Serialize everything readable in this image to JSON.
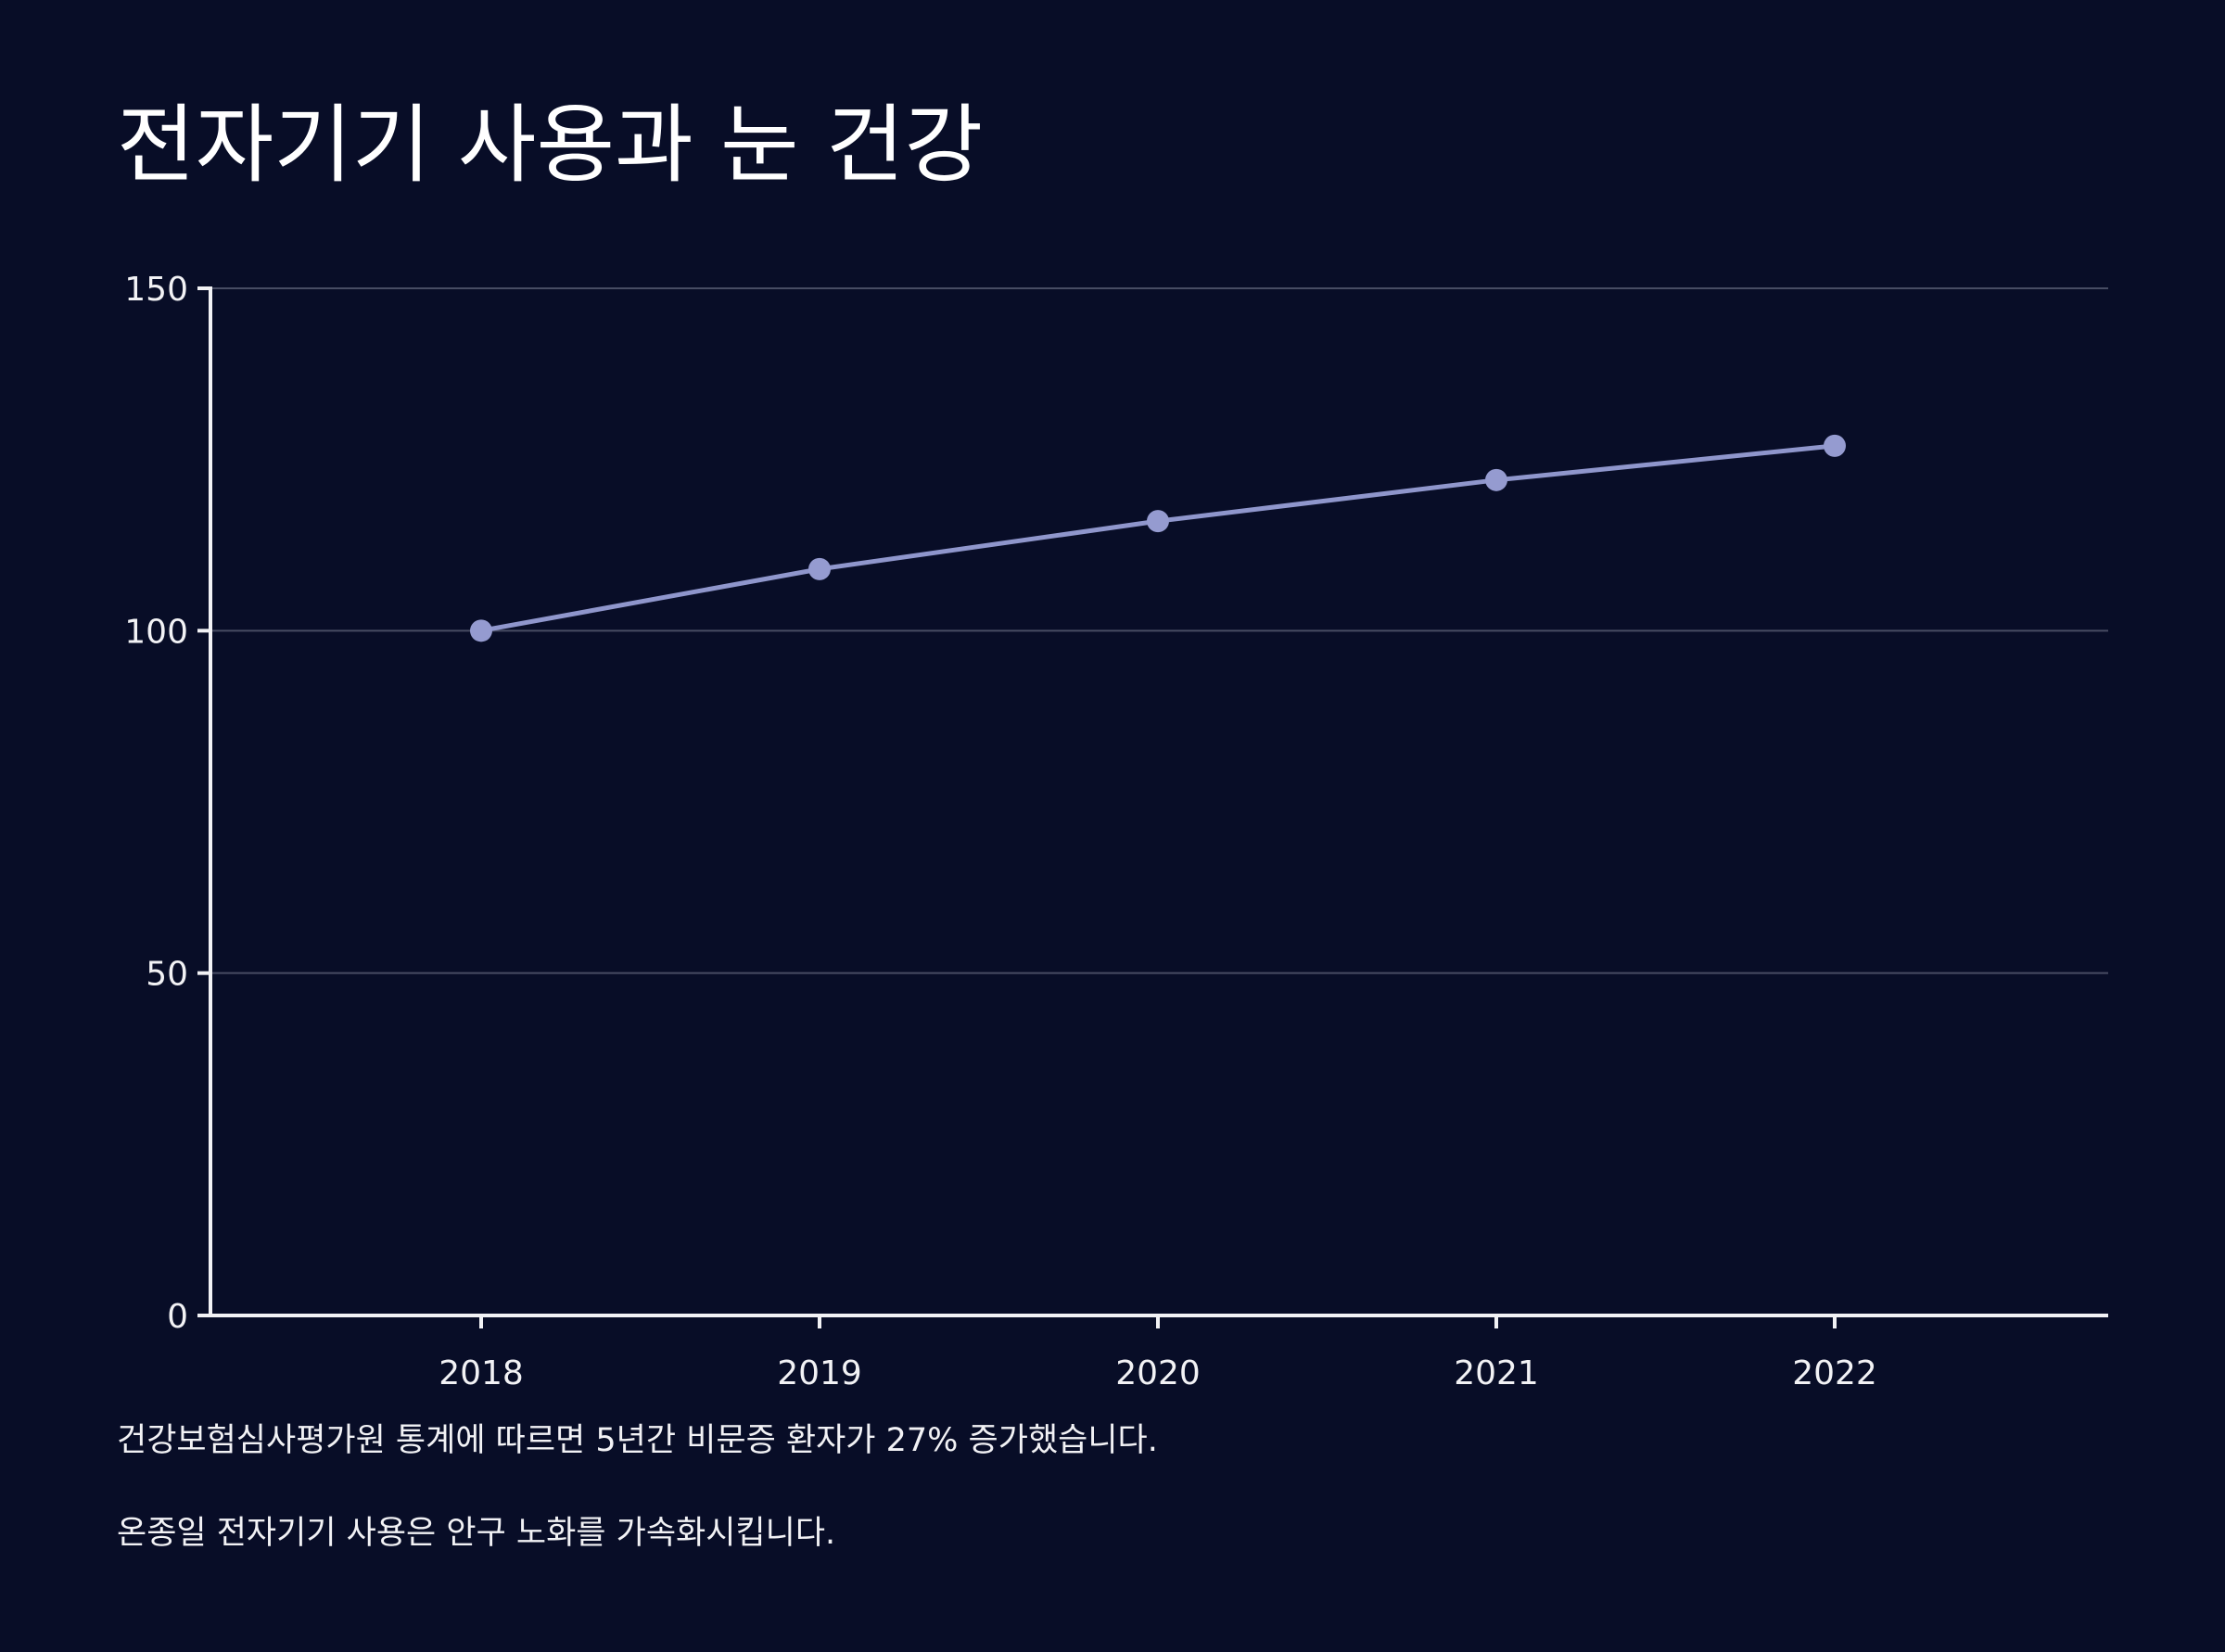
{
  "chart_data": {
    "type": "line",
    "title": "전자기기 사용과 눈 건강",
    "xlabel": "",
    "ylabel": "",
    "categories": [
      "2018",
      "2019",
      "2020",
      "2021",
      "2022"
    ],
    "series": [
      {
        "values": [
          100,
          109,
          116,
          122,
          127
        ]
      }
    ],
    "ylim": [
      0,
      150
    ],
    "yticks": [
      0,
      50,
      100,
      150
    ],
    "ytick_labels": [
      "0",
      "50",
      "100",
      "150"
    ],
    "grid": true,
    "legend": "none"
  },
  "notes": [
    "건강보험심사평가원 통계에 따르면 5년간 비문증 환자가 27% 증가했습니다.",
    "온종일 전자기기 사용은 안구 노화를 가속화시킵니다."
  ],
  "colors": {
    "background": "#080d27",
    "line": "#8f96cc",
    "marker": "#959bd0",
    "axis": "#f2f2f5",
    "grid": "#474c63",
    "text": "#f2f2f5"
  }
}
